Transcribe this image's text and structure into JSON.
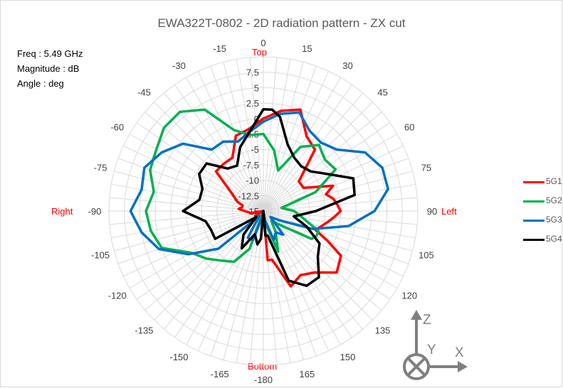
{
  "chart_data": {
    "type": "polar-line",
    "title": "EWA322T-0802   -   2D radiation pattern - ZX cut",
    "info": [
      "Freq : 5.49 GHz",
      "Magnitude : dB",
      "Angle : deg"
    ],
    "direction_labels": {
      "top": "Top",
      "bottom": "Bottom",
      "left": "Left",
      "right": "Right"
    },
    "angle_ticks": [
      "0",
      "15",
      "30",
      "45",
      "60",
      "75",
      "90",
      "105",
      "120",
      "135",
      "150",
      "165",
      "-180",
      "-165",
      "-150",
      "-135",
      "-120",
      "-105",
      "-90",
      "-75",
      "-60",
      "-45",
      "-30",
      "-15"
    ],
    "radial_ticks": [
      "7.5",
      "5",
      "2.5",
      "0",
      "-2.5",
      "-5",
      "-7.5",
      "-10",
      "-12.5",
      "-15"
    ],
    "rlim": [
      -15,
      10
    ],
    "grid": true,
    "legend_position": "right",
    "axis_symbol_labels": {
      "z": "Z",
      "y": "Y",
      "x": "X"
    },
    "series": [
      {
        "name": "5G1",
        "color": "#ff0000",
        "points": [
          [
            0,
            0
          ],
          [
            10,
            1.5
          ],
          [
            20,
            2.5
          ],
          [
            30,
            -1
          ],
          [
            40,
            -2
          ],
          [
            50,
            -7.5
          ],
          [
            60,
            -7.5
          ],
          [
            70,
            -3
          ],
          [
            75,
            -4.5
          ],
          [
            80,
            -3.5
          ],
          [
            85,
            -3
          ],
          [
            90,
            -2.5
          ],
          [
            95,
            -3.5
          ],
          [
            100,
            -4.5
          ],
          [
            110,
            -6
          ],
          [
            115,
            -3.5
          ],
          [
            120,
            -0.5
          ],
          [
            130,
            0.5
          ],
          [
            140,
            -2
          ],
          [
            150,
            -3
          ],
          [
            160,
            -2
          ],
          [
            170,
            -7
          ],
          [
            175,
            -7
          ],
          [
            180,
            -15
          ],
          [
            185,
            -15
          ],
          [
            190,
            -14
          ],
          [
            200,
            -14
          ],
          [
            210,
            -15
          ],
          [
            220,
            -15
          ],
          [
            235,
            -15
          ],
          [
            240,
            -13.5
          ],
          [
            245,
            -15
          ],
          [
            250,
            -15
          ],
          [
            255,
            -15
          ],
          [
            260,
            -13
          ],
          [
            270,
            -12
          ],
          [
            275,
            -11
          ],
          [
            280,
            -11.5
          ],
          [
            285,
            -11.5
          ],
          [
            290,
            -10.5
          ],
          [
            300,
            -9
          ],
          [
            310,
            -5
          ],
          [
            320,
            -5
          ],
          [
            330,
            -5
          ],
          [
            340,
            -2
          ],
          [
            350,
            -1.5
          ],
          [
            360,
            0
          ]
        ]
      },
      {
        "name": "5G2",
        "color": "#00b050",
        "points": [
          [
            0,
            -2.5
          ],
          [
            10,
            -5
          ],
          [
            20,
            -8
          ],
          [
            30,
            -3
          ],
          [
            40,
            -1
          ],
          [
            50,
            -2
          ],
          [
            60,
            -1.5
          ],
          [
            70,
            -6
          ],
          [
            80,
            -12
          ],
          [
            90,
            -10
          ],
          [
            100,
            -8.5
          ],
          [
            110,
            -5.5
          ],
          [
            115,
            -5.5
          ],
          [
            120,
            -6
          ],
          [
            130,
            -11.5
          ],
          [
            140,
            -13
          ],
          [
            150,
            -11
          ],
          [
            160,
            -8
          ],
          [
            170,
            -13
          ],
          [
            180,
            -15
          ],
          [
            190,
            -15
          ],
          [
            200,
            -8.5
          ],
          [
            210,
            -5.5
          ],
          [
            220,
            -4.5
          ],
          [
            230,
            -3
          ],
          [
            240,
            -1.5
          ],
          [
            250,
            2.5
          ],
          [
            260,
            3.5
          ],
          [
            270,
            4
          ],
          [
            280,
            3
          ],
          [
            290,
            4.5
          ],
          [
            300,
            5
          ],
          [
            310,
            6
          ],
          [
            320,
            6
          ],
          [
            330,
            4
          ],
          [
            340,
            -1
          ],
          [
            350,
            -2.5
          ],
          [
            360,
            -2.5
          ]
        ]
      },
      {
        "name": "5G3",
        "color": "#0070c0",
        "points": [
          [
            0,
            -0.5
          ],
          [
            10,
            1
          ],
          [
            20,
            2
          ],
          [
            30,
            0
          ],
          [
            40,
            -0.5
          ],
          [
            50,
            0.5
          ],
          [
            60,
            4
          ],
          [
            70,
            5.5
          ],
          [
            80,
            5.5
          ],
          [
            90,
            3
          ],
          [
            100,
            -1
          ],
          [
            110,
            -6.5
          ],
          [
            120,
            -12
          ],
          [
            130,
            -13.5
          ],
          [
            140,
            -10
          ],
          [
            150,
            -11
          ],
          [
            160,
            -10
          ],
          [
            170,
            -13.5
          ],
          [
            180,
            -15
          ],
          [
            190,
            -14
          ],
          [
            200,
            -10
          ],
          [
            210,
            -10
          ],
          [
            220,
            -14
          ],
          [
            230,
            -5.5
          ],
          [
            240,
            -1
          ],
          [
            250,
            3
          ],
          [
            260,
            5
          ],
          [
            270,
            6.5
          ],
          [
            280,
            5
          ],
          [
            290,
            5.5
          ],
          [
            300,
            4
          ],
          [
            310,
            2
          ],
          [
            320,
            -2
          ],
          [
            330,
            -2
          ],
          [
            340,
            -3
          ],
          [
            350,
            -2
          ],
          [
            360,
            -0.5
          ]
        ]
      },
      {
        "name": "5G4",
        "color": "#000000",
        "points": [
          [
            0,
            1.5
          ],
          [
            5,
            1.5
          ],
          [
            10,
            0.5
          ],
          [
            20,
            -3.5
          ],
          [
            30,
            -5
          ],
          [
            40,
            -5.5
          ],
          [
            50,
            -5
          ],
          [
            60,
            -3
          ],
          [
            70,
            0.5
          ],
          [
            80,
            0
          ],
          [
            90,
            -6.5
          ],
          [
            100,
            -10
          ],
          [
            110,
            -7.5
          ],
          [
            120,
            -4.5
          ],
          [
            130,
            -3.5
          ],
          [
            140,
            -1
          ],
          [
            150,
            -1
          ],
          [
            160,
            -3
          ],
          [
            170,
            -11
          ],
          [
            175,
            -11
          ],
          [
            180,
            -15
          ],
          [
            185,
            -10.5
          ],
          [
            190,
            -9.5
          ],
          [
            200,
            -11
          ],
          [
            210,
            -8
          ],
          [
            220,
            -10
          ],
          [
            230,
            -13.5
          ],
          [
            240,
            -6
          ],
          [
            250,
            -6
          ],
          [
            260,
            -5.5
          ],
          [
            270,
            -2
          ],
          [
            280,
            -4.5
          ],
          [
            290,
            -4.5
          ],
          [
            300,
            -3
          ],
          [
            310,
            -3
          ],
          [
            320,
            -6
          ],
          [
            330,
            -6.5
          ],
          [
            340,
            -4
          ],
          [
            350,
            -2
          ],
          [
            360,
            1.5
          ]
        ]
      }
    ]
  }
}
